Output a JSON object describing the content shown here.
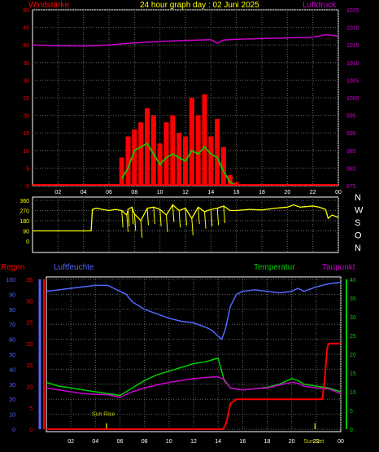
{
  "header": {
    "left": "Windstärke",
    "center": "24 hour graph day : 02 Juni 2025",
    "right": "Luftdruck"
  },
  "colors": {
    "wind": "#ff0000",
    "gust_avg": "#22bb00",
    "calm_bars": "#ccffcc",
    "pressure": "#cc00cc",
    "direction": "#ffff00",
    "rain": "#ff0000",
    "humidity": "#5566ff",
    "temperature": "#00cc00",
    "dewpoint": "#cc00cc",
    "grid": "#666666",
    "frame": "#ffffff"
  },
  "x_hour_labels": [
    "02",
    "04",
    "06",
    "08",
    "10",
    "12",
    "14",
    "16",
    "18",
    "20",
    "22",
    "00"
  ],
  "chart_data": [
    {
      "type": "line",
      "title": "",
      "ylabel_left": "Windstärke",
      "ylabel_right": "Luftdruck",
      "y_left_ticks": [
        "0",
        "5",
        "10",
        "15",
        "20",
        "25",
        "30",
        "35",
        "40",
        "45",
        "50"
      ],
      "y_right_ticks": [
        "975",
        "980",
        "985",
        "990",
        "995",
        "1000",
        "1005",
        "1010",
        "1015",
        "1020",
        "1025"
      ],
      "ylim_left": [
        0,
        50
      ],
      "ylim_right": [
        975,
        1025
      ],
      "x_range_hours": [
        0,
        24
      ],
      "series": [
        {
          "name": "Windstärke",
          "axis": "left",
          "x": [
            7.0,
            7.5,
            8.0,
            8.5,
            9.0,
            9.5,
            10.0,
            10.5,
            11.0,
            11.5,
            12.0,
            12.5,
            13.0,
            13.5,
            14.0,
            14.5,
            15.0,
            15.5,
            16.0
          ],
          "values": [
            8,
            14,
            16,
            18,
            22,
            20,
            12,
            18,
            20,
            15,
            14,
            25,
            20,
            26,
            14,
            19,
            11,
            3,
            1
          ]
        },
        {
          "name": "Böen",
          "axis": "left",
          "x": [
            7.0,
            7.5,
            8.0,
            8.5,
            9.0,
            9.5,
            10.0,
            10.5,
            11.0,
            11.5,
            12.0,
            12.5,
            13.0,
            13.5,
            14.0,
            14.5,
            15.0,
            15.5,
            16.0
          ],
          "values": [
            2,
            5,
            10,
            11,
            12,
            9,
            6,
            8,
            9,
            8,
            7,
            10,
            9,
            11,
            9,
            8,
            4,
            1,
            0
          ]
        },
        {
          "name": "Luftdruck",
          "axis": "right",
          "x": [
            0,
            2,
            4,
            6,
            8,
            10,
            12,
            14,
            14.5,
            15,
            16,
            18,
            20,
            22,
            23,
            24
          ],
          "values": [
            1015,
            1014.8,
            1014.7,
            1015,
            1015.6,
            1016,
            1016.3,
            1016.5,
            1015.5,
            1016.4,
            1016.6,
            1016.8,
            1017,
            1017.2,
            1017.9,
            1017.5
          ]
        }
      ]
    },
    {
      "type": "line",
      "title": "",
      "y_ticks": [
        "90",
        "180",
        "270",
        "360"
      ],
      "ylim": [
        0,
        360
      ],
      "direction_labels": [
        "N",
        "W",
        "S",
        "O",
        "N"
      ],
      "x_range_hours": [
        0,
        24
      ],
      "series": [
        {
          "name": "Windrichtung",
          "x": [
            0,
            1,
            2,
            3,
            4,
            4.6,
            4.7,
            5.0,
            5.5,
            6.0,
            6.5,
            7.0,
            7.4,
            7.5,
            7.8,
            8,
            8.5,
            9,
            9.5,
            10,
            10.5,
            11,
            11.5,
            12,
            12.5,
            13,
            13.5,
            14,
            14.5,
            15,
            15.5,
            16,
            17,
            18,
            19,
            20,
            20.5,
            21,
            22,
            22.5,
            23,
            23.2,
            23.5,
            24
          ],
          "values": [
            90,
            90,
            90,
            90,
            90,
            90,
            280,
            290,
            280,
            270,
            280,
            270,
            230,
            280,
            300,
            240,
            180,
            290,
            300,
            280,
            230,
            320,
            270,
            290,
            200,
            300,
            260,
            280,
            290,
            310,
            270,
            270,
            280,
            275,
            290,
            300,
            320,
            300,
            310,
            300,
            280,
            200,
            230,
            210
          ]
        }
      ]
    },
    {
      "type": "line",
      "title": "",
      "legend": [
        "Regen",
        "Luftfeuchte",
        "Temperatur",
        "Taupunkt"
      ],
      "y_left_ticks_humidity": [
        "0",
        "10",
        "20",
        "30",
        "40",
        "50",
        "60",
        "70",
        "80",
        "90",
        "100"
      ],
      "y_left_ticks_rain": [
        "0",
        "5",
        "10",
        "15",
        "20",
        "25",
        "30",
        "35"
      ],
      "y_right_ticks": [
        "0",
        "5",
        "10",
        "15",
        "20",
        "25",
        "30",
        "35",
        "40"
      ],
      "ylim_humidity": [
        0,
        100
      ],
      "ylim_rain": [
        0,
        35
      ],
      "ylim_temp": [
        0,
        40
      ],
      "annotations": [
        "Sun Rise",
        "Sun Set"
      ],
      "annotation_hours": [
        4.9,
        21.9
      ],
      "x_range_hours": [
        0,
        24
      ],
      "series": [
        {
          "name": "Luftfeuchte",
          "axis": "humidity",
          "x": [
            0,
            1,
            2,
            3,
            4,
            5,
            5.5,
            6,
            6.5,
            7,
            8,
            9,
            10,
            11,
            12,
            13,
            13.5,
            14,
            14.3,
            14.6,
            15,
            15.5,
            16,
            17,
            18,
            19,
            20,
            20.5,
            21,
            22,
            23,
            24
          ],
          "values": [
            92,
            93,
            94,
            95,
            96,
            96,
            94,
            92,
            90,
            85,
            80,
            77,
            74,
            72,
            71,
            68,
            66,
            62,
            60,
            67,
            82,
            90,
            92,
            93,
            92,
            91,
            92,
            94,
            92,
            95,
            97,
            98
          ]
        },
        {
          "name": "Temperatur",
          "axis": "temp",
          "x": [
            0,
            1,
            2,
            3,
            4,
            5,
            6,
            7,
            8,
            9,
            10,
            11,
            12,
            13,
            14,
            14.5,
            15,
            16,
            17,
            18,
            19,
            20,
            20.5,
            21,
            22,
            23,
            24
          ],
          "values": [
            12.5,
            11.5,
            11,
            10.5,
            10,
            9.5,
            9,
            11,
            13,
            14.5,
            15.5,
            16.5,
            17.5,
            18,
            19,
            13,
            11,
            10.5,
            10.8,
            11.2,
            12,
            13.5,
            13,
            12,
            11.5,
            11,
            10
          ]
        },
        {
          "name": "Taupunkt",
          "axis": "temp",
          "x": [
            0,
            1,
            2,
            3,
            4,
            5,
            6,
            7,
            8,
            9,
            10,
            11,
            12,
            13,
            14,
            14.5,
            15,
            16,
            17,
            18,
            19,
            20,
            20.5,
            21,
            22,
            23,
            24
          ],
          "values": [
            11,
            10.5,
            10,
            9.5,
            9.3,
            9.2,
            8.5,
            10,
            11,
            11.8,
            12.5,
            13,
            13.5,
            13.8,
            14,
            13.3,
            11,
            10.5,
            10.8,
            11,
            11.8,
            12.5,
            12.3,
            11.5,
            11,
            10.8,
            9.5
          ]
        },
        {
          "name": "Regen",
          "axis": "rain",
          "x": [
            0,
            14.4,
            14.6,
            14.8,
            15,
            15.5,
            16,
            18,
            20,
            21,
            22,
            22.5,
            22.7,
            22.9,
            23.0,
            24
          ],
          "values": [
            0,
            0,
            1,
            3,
            6,
            7,
            7,
            7,
            7,
            7,
            7,
            7,
            12,
            19,
            20,
            20
          ]
        }
      ]
    }
  ]
}
